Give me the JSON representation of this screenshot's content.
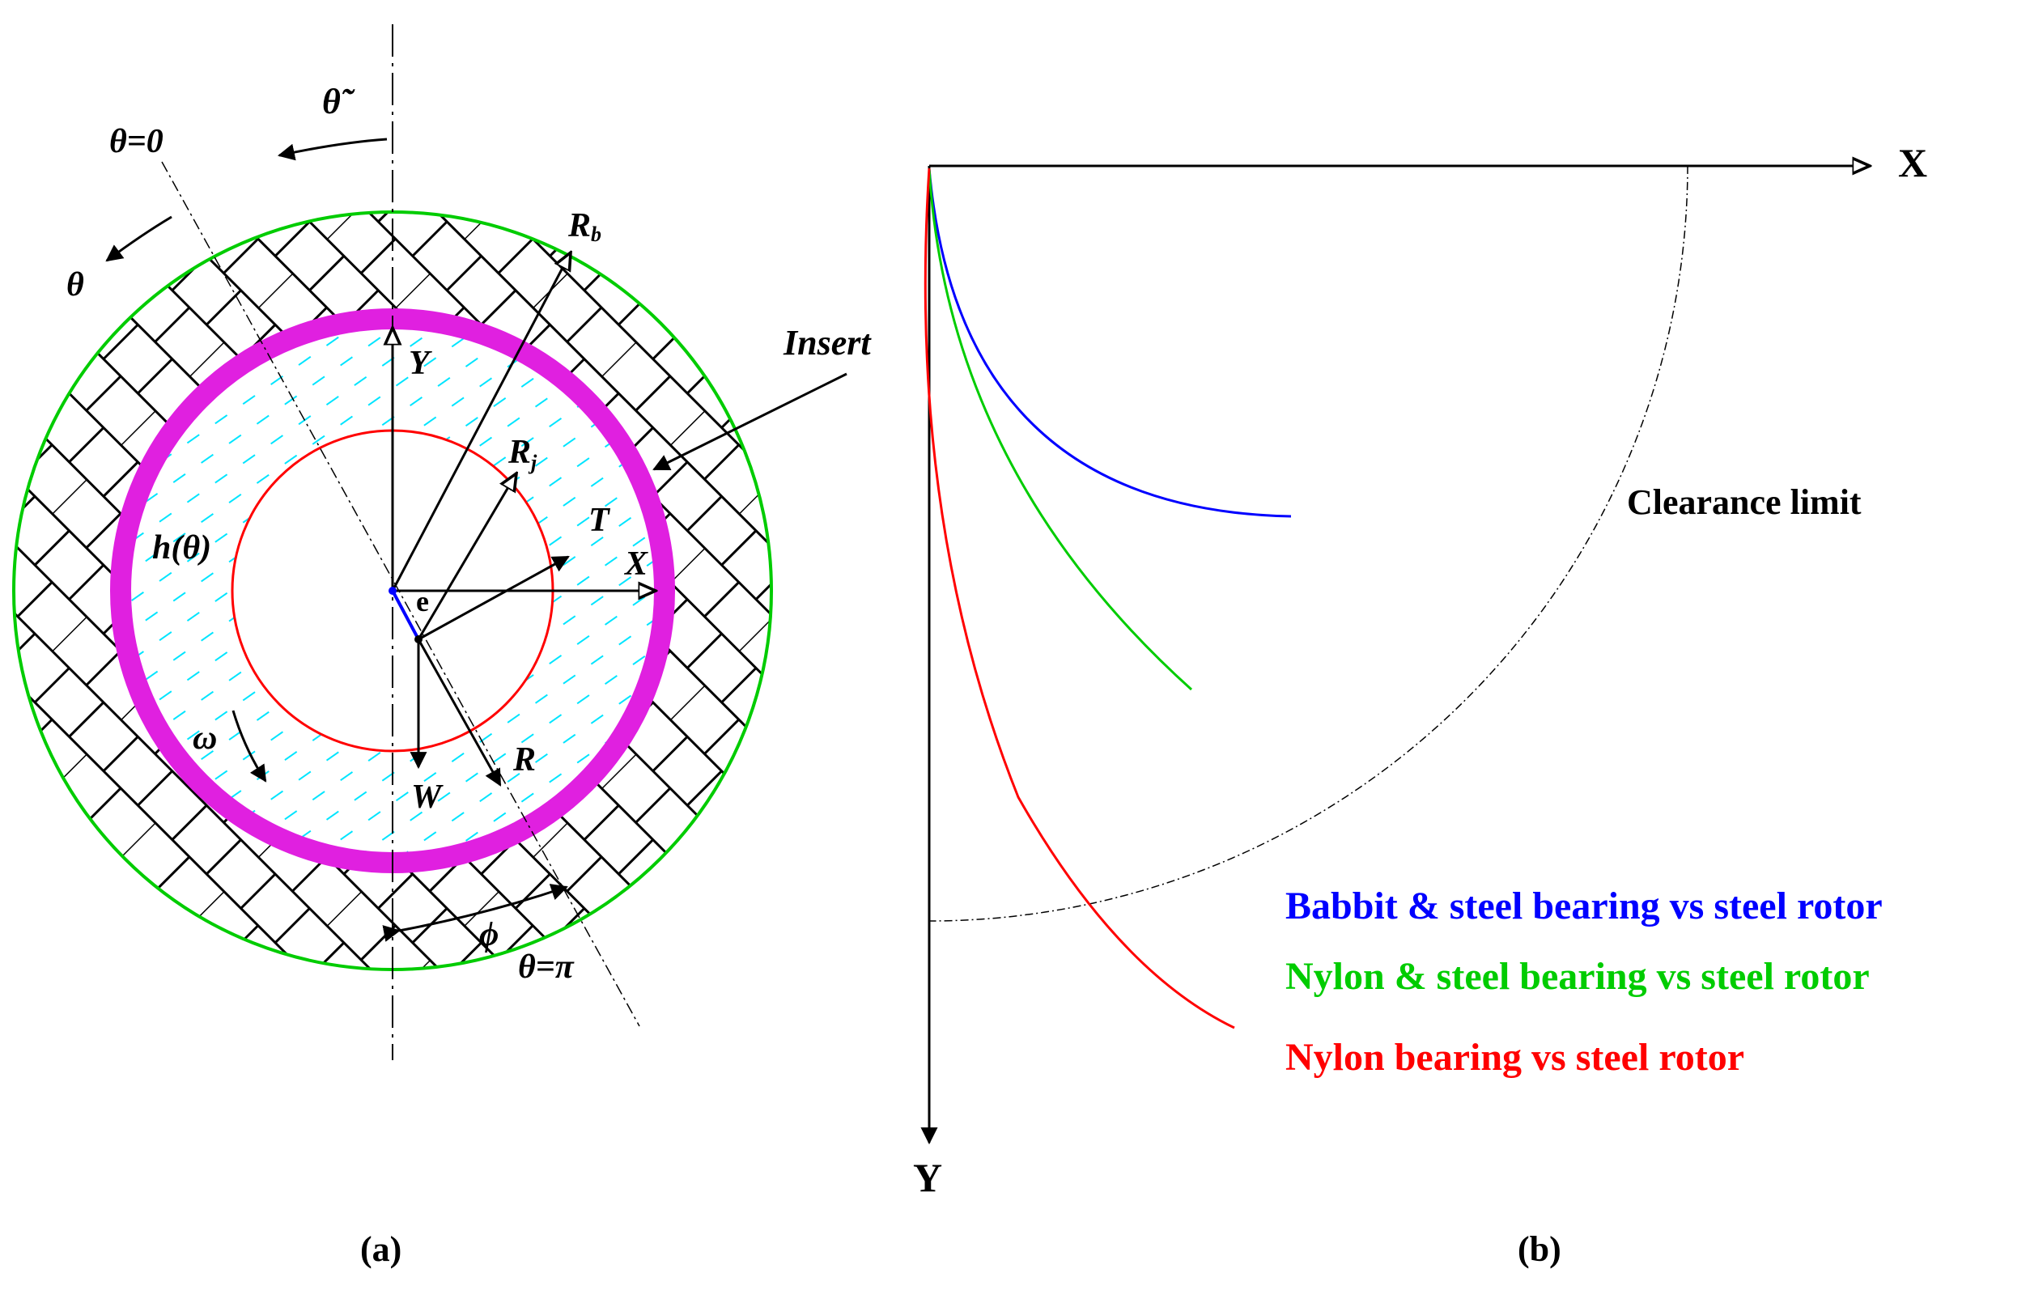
{
  "panel_a": {
    "label": "(a)",
    "theta_tilde": "θ̃",
    "theta_zero": "θ=0",
    "theta": "θ",
    "theta_pi": "θ=π",
    "Rb": "R",
    "Rb_sub": "b",
    "insert": "Insert",
    "Y": "Y",
    "Rj": "R",
    "Rj_sub": "j",
    "T": "T",
    "X": "X",
    "h_theta": "h(θ)",
    "e": "e",
    "omega": "ω",
    "W": "W",
    "R": "R",
    "phi": "ϕ",
    "colors": {
      "housing": "#00cc00",
      "insert_ring": "#e020e0",
      "journal": "#ff0000",
      "lubricant": "#00e5ff",
      "eccentricity": "#0000ff"
    }
  },
  "panel_b": {
    "label": "(b)",
    "x_axis": "X",
    "y_axis": "Y",
    "clearance_label": "Clearance limit",
    "legend": [
      {
        "text": "Babbit & steel bearing vs steel rotor",
        "color": "#0000ff"
      },
      {
        "text": "Nylon & steel bearing vs steel rotor",
        "color": "#00cc00"
      },
      {
        "text": "Nylon bearing vs steel rotor",
        "color": "#ff0000"
      }
    ]
  }
}
